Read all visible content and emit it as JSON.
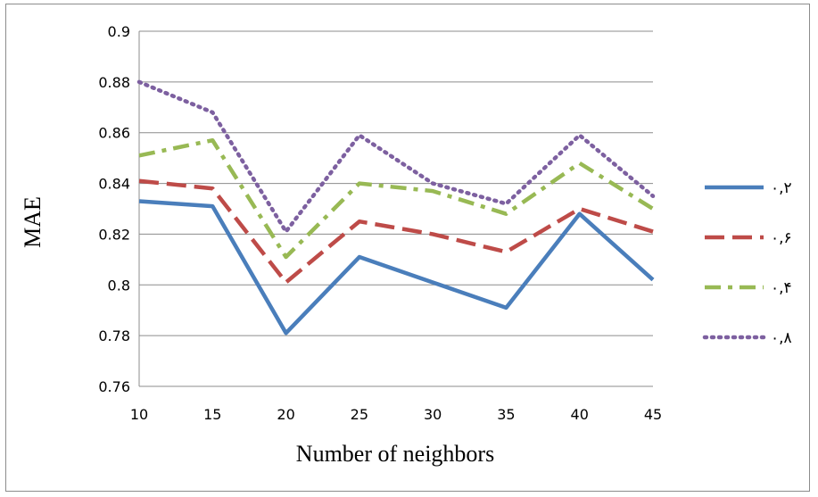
{
  "chart_data": {
    "type": "line",
    "title": "",
    "xlabel": "Number of neighbors",
    "ylabel": "MAE",
    "x": [
      10,
      15,
      20,
      25,
      30,
      35,
      40,
      45
    ],
    "x_tick_labels": [
      "10",
      "15",
      "20",
      "25",
      "30",
      "35",
      "40",
      "45"
    ],
    "y_tick_labels": [
      "0.76",
      "0.78",
      "0.8",
      "0.82",
      "0.84",
      "0.86",
      "0.88",
      "0.9"
    ],
    "ylim": [
      0.76,
      0.9
    ],
    "y_ticks": [
      0.76,
      0.78,
      0.8,
      0.82,
      0.84,
      0.86,
      0.88,
      0.9
    ],
    "grid": "horizontal",
    "legend_position": "right",
    "series": [
      {
        "name": "۰,۲",
        "color": "#4a7ebb",
        "style": "solid",
        "values": [
          0.833,
          0.831,
          0.781,
          0.811,
          0.801,
          0.791,
          0.828,
          0.802
        ]
      },
      {
        "name": "۰,۶",
        "color": "#be4b48",
        "style": "dash",
        "values": [
          0.841,
          0.838,
          0.801,
          0.825,
          0.82,
          0.813,
          0.83,
          0.821
        ]
      },
      {
        "name": "۰,۴",
        "color": "#98b954",
        "style": "dashdot",
        "values": [
          0.851,
          0.857,
          0.811,
          0.84,
          0.837,
          0.828,
          0.848,
          0.83
        ]
      },
      {
        "name": "۰,۸",
        "color": "#7d60a0",
        "style": "dot",
        "values": [
          0.88,
          0.868,
          0.821,
          0.859,
          0.84,
          0.832,
          0.859,
          0.835
        ]
      }
    ]
  }
}
